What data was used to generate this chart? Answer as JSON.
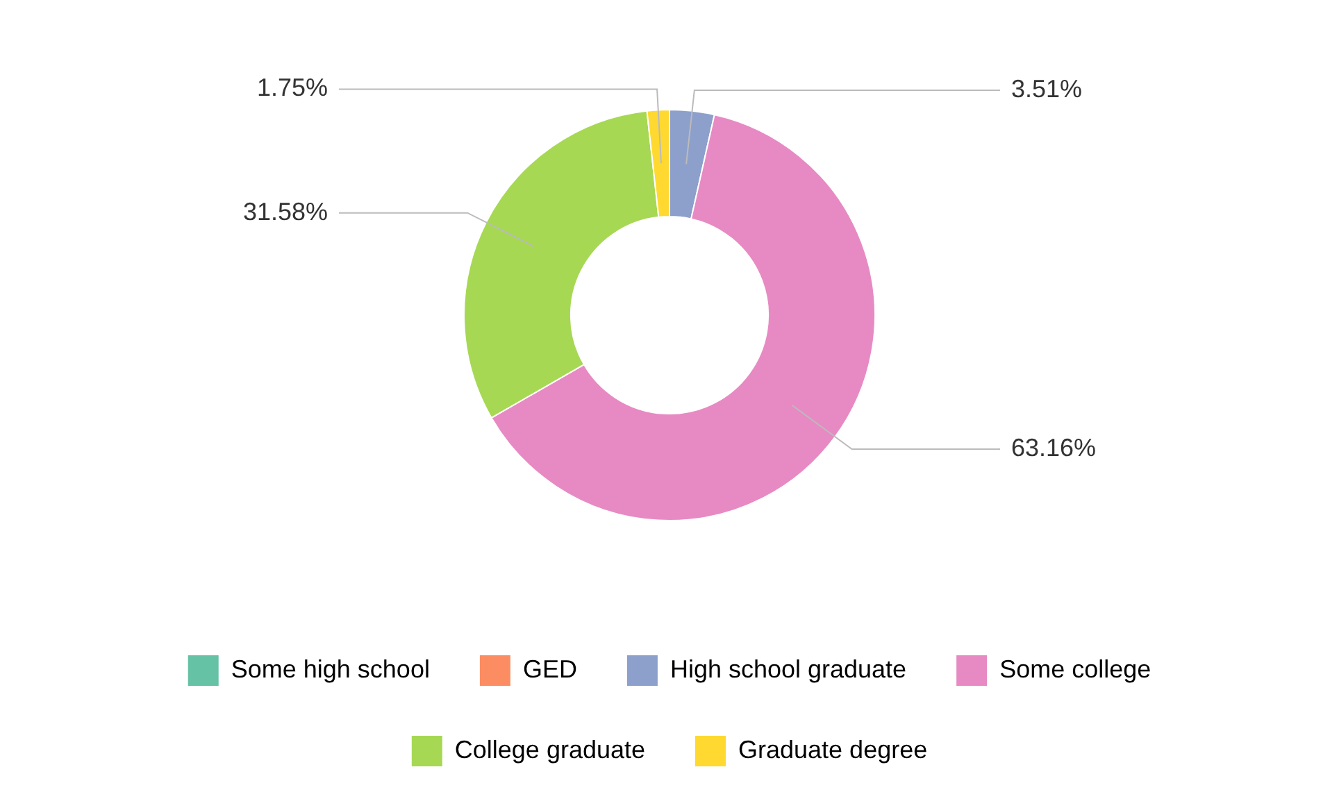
{
  "chart_data": {
    "type": "donut",
    "categories": [
      "Some high school",
      "GED",
      "High school graduate",
      "Some college",
      "College graduate",
      "Graduate degree"
    ],
    "values": [
      0,
      0,
      3.51,
      63.16,
      31.58,
      1.75
    ],
    "colors": [
      "#66c2a5",
      "#fc8d62",
      "#8da0cb",
      "#e78ac3",
      "#a6d854",
      "#ffd92f"
    ],
    "value_labels": [
      null,
      null,
      "3.51%",
      "63.16%",
      "31.58%",
      "1.75%"
    ],
    "legend": "bottom"
  }
}
